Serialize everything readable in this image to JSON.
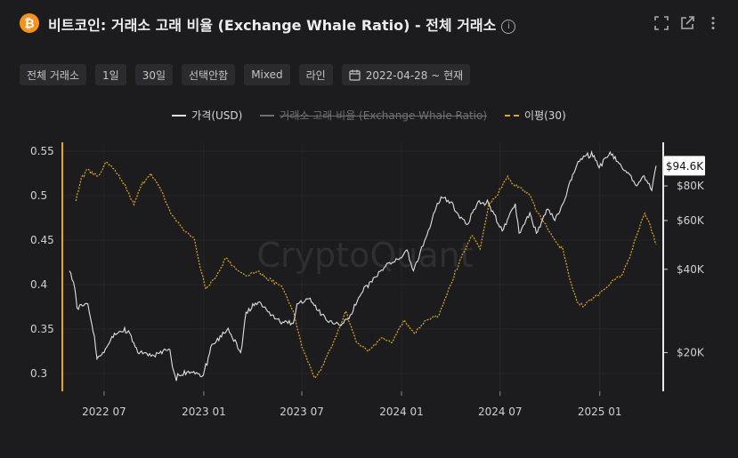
{
  "header": {
    "coin_symbol": "₿",
    "title": "비트코인: 거래소 고래 비율 (Exchange Whale Ratio) - 전체 거래소",
    "info_symbol": "i"
  },
  "toolbar": {
    "exchange": "전체 거래소",
    "interval": "1일",
    "window": "30일",
    "filter": "선택안함",
    "mode": "Mixed",
    "chart_style": "라인",
    "date_range": "2022-04-28 ~ 현재"
  },
  "legend": {
    "price": "가격(USD)",
    "ratio": "거래소 고래 비율 (Exchange Whale Ratio)",
    "ma": "이평(30)"
  },
  "watermark": "CryptoQuant",
  "colors": {
    "price": "#e0e0e0",
    "ma": "#e0a81c",
    "axis": "#e0a81c",
    "background": "#1c1c1f"
  },
  "chart_data": {
    "type": "line",
    "x_range": [
      "2022-04-28",
      "2025-04-15"
    ],
    "x_ticks": [
      {
        "date": "2022-07-01",
        "label": "2022 07"
      },
      {
        "date": "2023-01-01",
        "label": "2023 01"
      },
      {
        "date": "2023-07-01",
        "label": "2023 07"
      },
      {
        "date": "2024-01-01",
        "label": "2024 01"
      },
      {
        "date": "2024-07-01",
        "label": "2024 07"
      },
      {
        "date": "2025-01-01",
        "label": "2025 01"
      }
    ],
    "y_left": {
      "range": [
        0.28,
        0.56
      ],
      "ticks": [
        0.3,
        0.35,
        0.4,
        0.45,
        0.5,
        0.55
      ]
    },
    "y_right": {
      "scale": "log",
      "range": [
        14500,
        115000
      ],
      "ticks": [
        {
          "value": 20000,
          "label": "$20K"
        },
        {
          "value": 40000,
          "label": "$40K"
        },
        {
          "value": 60000,
          "label": "$60K"
        },
        {
          "value": 80000,
          "label": "$80K"
        }
      ],
      "last_value_label": "$94.6K"
    },
    "series": [
      {
        "name": "가격(USD)",
        "axis": "right",
        "points": [
          [
            "2022-04-28",
            39500
          ],
          [
            "2022-05-08",
            34000
          ],
          [
            "2022-05-12",
            29000
          ],
          [
            "2022-06-01",
            30000
          ],
          [
            "2022-06-13",
            23000
          ],
          [
            "2022-06-18",
            19000
          ],
          [
            "2022-07-01",
            20000
          ],
          [
            "2022-07-20",
            23500
          ],
          [
            "2022-08-15",
            24000
          ],
          [
            "2022-09-01",
            20000
          ],
          [
            "2022-09-15",
            20000
          ],
          [
            "2022-10-01",
            19500
          ],
          [
            "2022-10-28",
            20600
          ],
          [
            "2022-11-09",
            16500
          ],
          [
            "2022-12-01",
            17000
          ],
          [
            "2022-12-31",
            16550
          ],
          [
            "2023-01-14",
            21000
          ],
          [
            "2023-02-15",
            24500
          ],
          [
            "2023-03-10",
            20000
          ],
          [
            "2023-03-20",
            28000
          ],
          [
            "2023-04-14",
            30500
          ],
          [
            "2023-05-12",
            26500
          ],
          [
            "2023-06-15",
            25500
          ],
          [
            "2023-06-22",
            30000
          ],
          [
            "2023-07-14",
            31300
          ],
          [
            "2023-08-17",
            26000
          ],
          [
            "2023-09-11",
            25000
          ],
          [
            "2023-10-01",
            27500
          ],
          [
            "2023-10-24",
            34500
          ],
          [
            "2023-11-15",
            37500
          ],
          [
            "2023-12-05",
            42000
          ],
          [
            "2024-01-01",
            44000
          ],
          [
            "2024-01-11",
            47000
          ],
          [
            "2024-01-23",
            39500
          ],
          [
            "2024-02-15",
            52000
          ],
          [
            "2024-03-05",
            67000
          ],
          [
            "2024-03-14",
            73000
          ],
          [
            "2024-04-01",
            70000
          ],
          [
            "2024-04-15",
            63000
          ],
          [
            "2024-05-01",
            58000
          ],
          [
            "2024-05-21",
            70000
          ],
          [
            "2024-06-10",
            69000
          ],
          [
            "2024-07-05",
            55000
          ],
          [
            "2024-07-29",
            69000
          ],
          [
            "2024-08-05",
            54000
          ],
          [
            "2024-08-25",
            64000
          ],
          [
            "2024-09-06",
            54000
          ],
          [
            "2024-09-27",
            66000
          ],
          [
            "2024-10-10",
            60000
          ],
          [
            "2024-10-29",
            72000
          ],
          [
            "2024-11-12",
            88000
          ],
          [
            "2024-11-22",
            98000
          ],
          [
            "2024-12-17",
            106000
          ],
          [
            "2024-12-31",
            93000
          ],
          [
            "2025-01-20",
            106000
          ],
          [
            "2025-02-03",
            98000
          ],
          [
            "2025-02-25",
            88000
          ],
          [
            "2025-03-10",
            80000
          ],
          [
            "2025-03-24",
            87000
          ],
          [
            "2025-04-07",
            77000
          ],
          [
            "2025-04-15",
            94600
          ]
        ]
      },
      {
        "name": "이평(30)",
        "axis": "left",
        "points": [
          [
            "2022-05-10",
            0.494
          ],
          [
            "2022-05-20",
            0.52
          ],
          [
            "2022-06-01",
            0.53
          ],
          [
            "2022-06-20",
            0.522
          ],
          [
            "2022-07-05",
            0.538
          ],
          [
            "2022-07-20",
            0.53
          ],
          [
            "2022-08-10",
            0.51
          ],
          [
            "2022-08-25",
            0.49
          ],
          [
            "2022-09-10",
            0.515
          ],
          [
            "2022-09-25",
            0.525
          ],
          [
            "2022-10-15",
            0.505
          ],
          [
            "2022-11-01",
            0.48
          ],
          [
            "2022-11-20",
            0.465
          ],
          [
            "2022-12-15",
            0.45
          ],
          [
            "2022-12-25",
            0.42
          ],
          [
            "2023-01-05",
            0.395
          ],
          [
            "2023-01-25",
            0.41
          ],
          [
            "2023-02-10",
            0.43
          ],
          [
            "2023-03-01",
            0.418
          ],
          [
            "2023-03-20",
            0.41
          ],
          [
            "2023-04-10",
            0.415
          ],
          [
            "2023-05-01",
            0.405
          ],
          [
            "2023-05-25",
            0.398
          ],
          [
            "2023-06-15",
            0.37
          ],
          [
            "2023-07-01",
            0.33
          ],
          [
            "2023-07-25",
            0.295
          ],
          [
            "2023-08-10",
            0.31
          ],
          [
            "2023-09-01",
            0.34
          ],
          [
            "2023-09-20",
            0.37
          ],
          [
            "2023-10-10",
            0.335
          ],
          [
            "2023-11-01",
            0.325
          ],
          [
            "2023-11-25",
            0.34
          ],
          [
            "2023-12-15",
            0.335
          ],
          [
            "2024-01-05",
            0.36
          ],
          [
            "2024-01-25",
            0.345
          ],
          [
            "2024-02-15",
            0.36
          ],
          [
            "2024-03-10",
            0.365
          ],
          [
            "2024-04-01",
            0.4
          ],
          [
            "2024-04-20",
            0.43
          ],
          [
            "2024-05-10",
            0.455
          ],
          [
            "2024-05-25",
            0.44
          ],
          [
            "2024-06-10",
            0.49
          ],
          [
            "2024-06-25",
            0.5
          ],
          [
            "2024-07-15",
            0.522
          ],
          [
            "2024-07-25",
            0.513
          ],
          [
            "2024-08-05",
            0.51
          ],
          [
            "2024-08-25",
            0.5
          ],
          [
            "2024-09-10",
            0.48
          ],
          [
            "2024-09-25",
            0.465
          ],
          [
            "2024-10-10",
            0.45
          ],
          [
            "2024-10-25",
            0.44
          ],
          [
            "2024-11-05",
            0.41
          ],
          [
            "2024-11-20",
            0.38
          ],
          [
            "2024-12-01",
            0.375
          ],
          [
            "2024-12-20",
            0.385
          ],
          [
            "2025-01-10",
            0.395
          ],
          [
            "2025-01-25",
            0.405
          ],
          [
            "2025-02-10",
            0.41
          ],
          [
            "2025-02-25",
            0.43
          ],
          [
            "2025-03-10",
            0.455
          ],
          [
            "2025-03-25",
            0.48
          ],
          [
            "2025-04-05",
            0.465
          ],
          [
            "2025-04-15",
            0.445
          ]
        ]
      }
    ]
  }
}
